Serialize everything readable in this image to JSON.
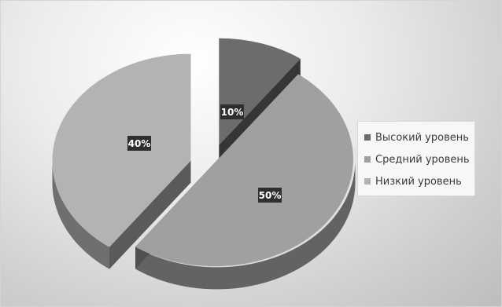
{
  "chart_data": {
    "type": "pie",
    "title": "",
    "categories": [
      "Высокий уровень",
      "Средний уровень",
      "Низкий уровень"
    ],
    "values": [
      10,
      50,
      40
    ],
    "data_labels": [
      "10%",
      "50%",
      "40%"
    ],
    "colors": [
      "#6c6c6c",
      "#a0a0a0",
      "#b3b3b3"
    ],
    "exploded": true,
    "style": "3d",
    "legend_position": "right"
  }
}
